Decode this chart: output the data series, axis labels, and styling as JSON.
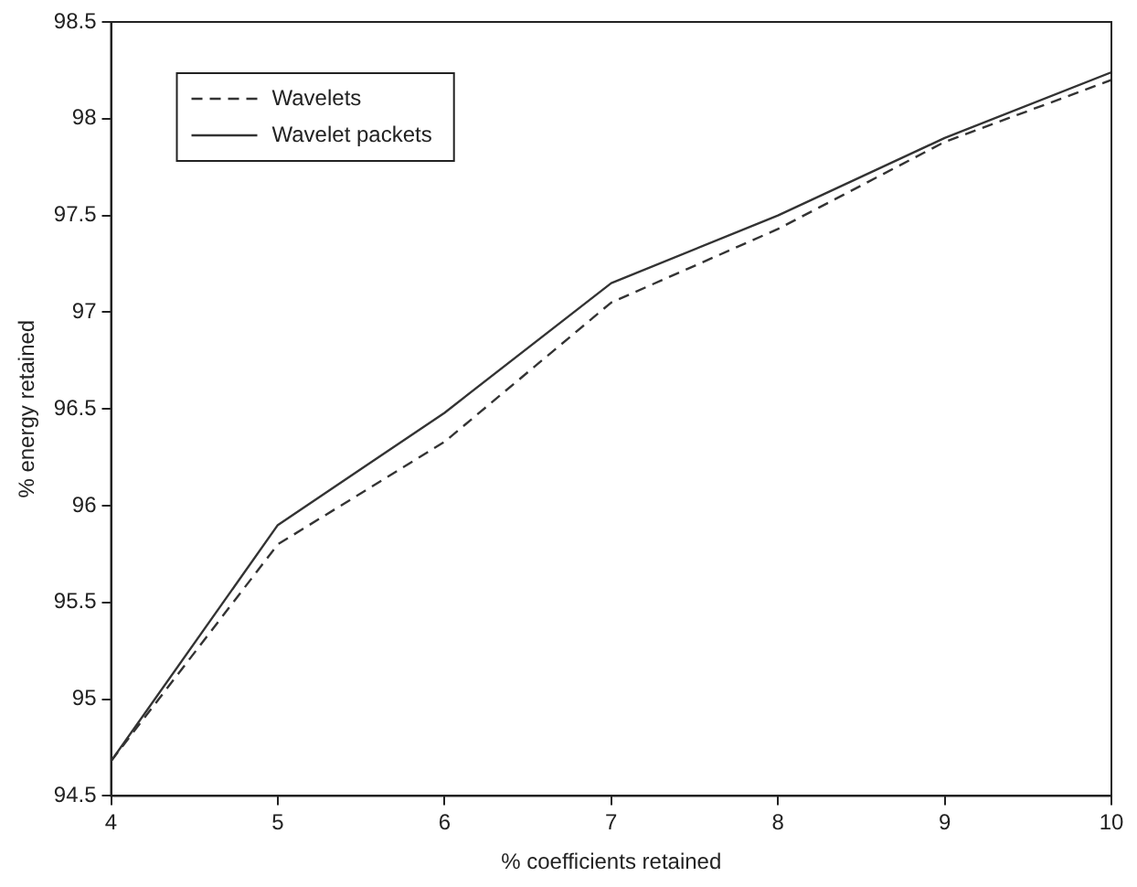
{
  "chart_data": {
    "type": "line",
    "xlabel": "% coefficients retained",
    "ylabel": "% energy retained",
    "x": [
      4,
      5,
      6,
      7,
      8,
      9,
      10
    ],
    "series": [
      {
        "name": "Wavelets",
        "color": "#333333",
        "line_style": "dashed",
        "values": [
          94.68,
          95.8,
          96.33,
          97.05,
          97.43,
          97.88,
          98.2
        ]
      },
      {
        "name": "Wavelet packets",
        "color": "#333333",
        "line_style": "solid",
        "values": [
          94.68,
          95.9,
          96.48,
          97.15,
          97.5,
          97.9,
          98.24
        ]
      }
    ],
    "xlim": [
      4,
      10
    ],
    "xticks": [
      4,
      5,
      6,
      7,
      8,
      9,
      10
    ],
    "ylim": [
      94.5,
      98.5
    ],
    "yticks": [
      94.5,
      95,
      95.5,
      96,
      96.5,
      97,
      97.5,
      98,
      98.5
    ],
    "grid": false,
    "legend": "top left",
    "marker": "none"
  }
}
